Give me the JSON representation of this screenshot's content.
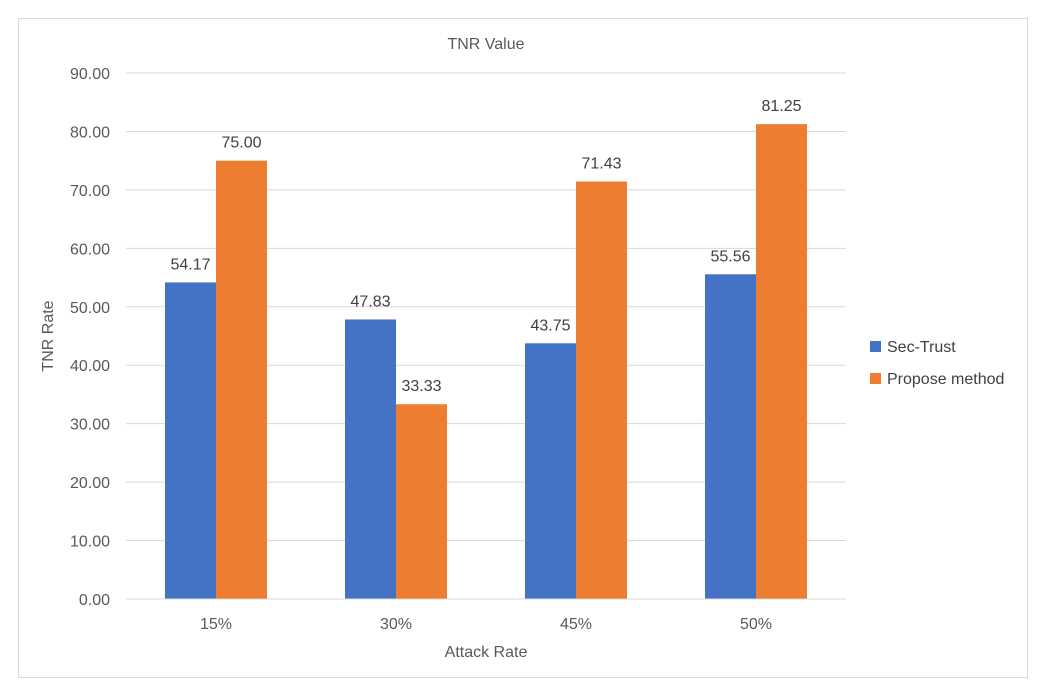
{
  "chart_data": {
    "type": "bar",
    "title": "TNR Value",
    "xlabel": "Attack Rate",
    "ylabel": "TNR Rate",
    "categories": [
      "15%",
      "30%",
      "45%",
      "50%"
    ],
    "series": [
      {
        "name": "Sec-Trust",
        "color": "#4472c4",
        "values": [
          54.17,
          47.83,
          43.75,
          55.56
        ],
        "labels": [
          "54.17",
          "47.83",
          "43.75",
          "55.56"
        ]
      },
      {
        "name": "Propose method",
        "color": "#ed7d31",
        "values": [
          75.0,
          33.33,
          71.43,
          81.25
        ],
        "labels": [
          "75.00",
          "33.33",
          "71.43",
          "81.25"
        ]
      }
    ],
    "ylim": [
      0,
      90
    ],
    "yticks": [
      "0.00",
      "10.00",
      "20.00",
      "30.00",
      "40.00",
      "50.00",
      "60.00",
      "70.00",
      "80.00",
      "90.00"
    ],
    "grid": true,
    "legend_position": "right"
  }
}
